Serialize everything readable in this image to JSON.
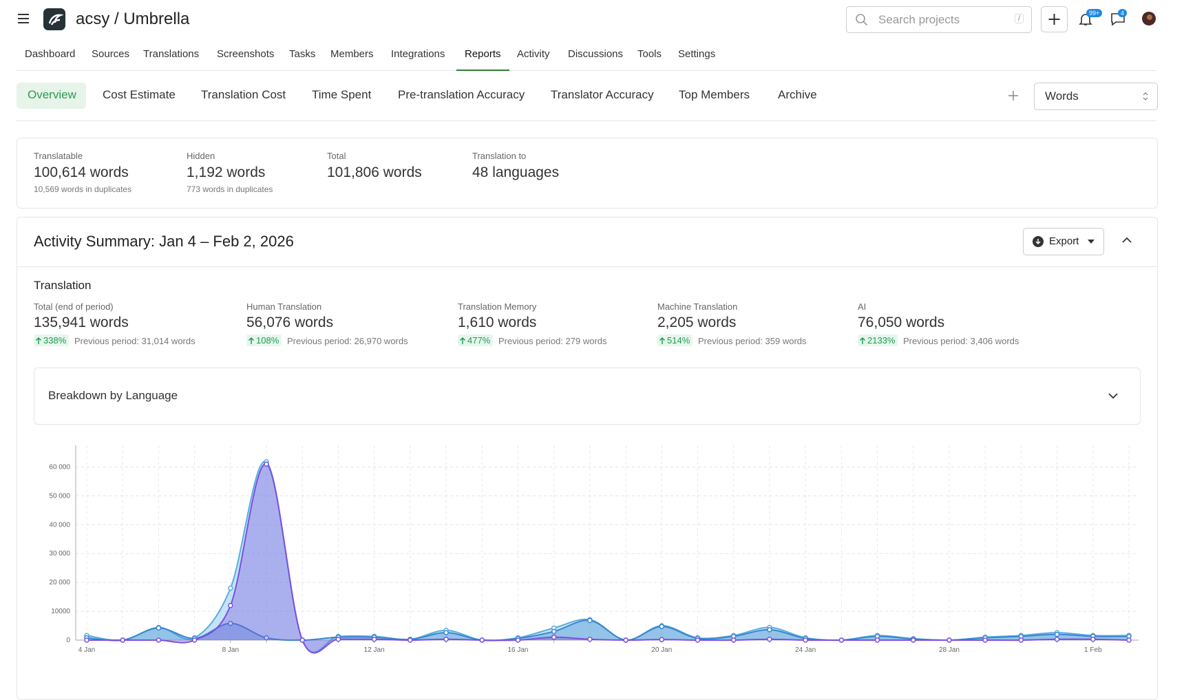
{
  "header": {
    "project": "acsy / Umbrella",
    "search_placeholder": "Search projects",
    "search_shortcut": "/",
    "notifications_badge": "99+",
    "messages_badge": "4"
  },
  "nav": {
    "items": [
      "Dashboard",
      "Sources",
      "Translations",
      "Screenshots",
      "Tasks",
      "Members",
      "Integrations",
      "Reports",
      "Activity",
      "Discussions",
      "Tools",
      "Settings"
    ],
    "active": 7
  },
  "tabs": {
    "items": [
      "Overview",
      "Cost Estimate",
      "Translation Cost",
      "Time Spent",
      "Pre-translation Accuracy",
      "Translator Accuracy",
      "Top Members",
      "Archive"
    ],
    "active": 0,
    "unit_select": "Words"
  },
  "stats": [
    {
      "label": "Translatable",
      "value": "100,614 words",
      "note": "10,569 words in duplicates"
    },
    {
      "label": "Hidden",
      "value": "1,192 words",
      "note": "773 words in duplicates"
    },
    {
      "label": "Total",
      "value": "101,806 words"
    },
    {
      "label": "Translation to",
      "value": "48 languages"
    }
  ],
  "summary": {
    "title": "Activity Summary: Jan 4 – Feb 2, 2026",
    "export": "Export",
    "section": "Translation",
    "metrics": [
      {
        "label": "Total (end of period)",
        "value": "135,941 words",
        "change": "338%",
        "previous": "Previous period: 31,014 words"
      },
      {
        "label": "Human Translation",
        "value": "56,076 words",
        "change": "108%",
        "previous": "Previous period: 26,970 words"
      },
      {
        "label": "Translation Memory",
        "value": "1,610 words",
        "change": "477%",
        "previous": "Previous period: 279 words"
      },
      {
        "label": "Machine Translation",
        "value": "2,205 words",
        "change": "514%",
        "previous": "Previous period: 359 words"
      },
      {
        "label": "AI",
        "value": "76,050 words",
        "change": "2133%",
        "previous": "Previous period: 3,406 words"
      }
    ],
    "breakdown": "Breakdown by Language"
  },
  "chart_data": {
    "type": "area",
    "categories": [
      "4 Jan",
      null,
      null,
      null,
      "8 Jan",
      null,
      null,
      null,
      "12 Jan",
      null,
      null,
      null,
      "16 Jan",
      null,
      null,
      null,
      "20 Jan",
      null,
      null,
      null,
      "24 Jan",
      null,
      null,
      null,
      "28 Jan",
      null,
      null,
      null,
      "1 Feb",
      null
    ],
    "series": [
      {
        "color": "#56aee0",
        "values": [
          1600,
          0,
          4400,
          800,
          18000,
          61800,
          0,
          1300,
          1300,
          300,
          3400,
          0,
          800,
          4200,
          7100,
          0,
          5000,
          800,
          1600,
          4400,
          800,
          0,
          1600,
          500,
          0,
          1000,
          1600,
          2600,
          1600,
          1600
        ]
      },
      {
        "color": "#3b86d0",
        "values": [
          800,
          0,
          4200,
          600,
          5800,
          800,
          0,
          1000,
          1000,
          200,
          2600,
          0,
          600,
          3000,
          6800,
          0,
          4700,
          600,
          1300,
          3600,
          600,
          0,
          1300,
          400,
          0,
          800,
          1300,
          2000,
          1300,
          1300
        ]
      },
      {
        "color": "#7c4fe0",
        "values": [
          0,
          0,
          0,
          0,
          12000,
          61000,
          0,
          300,
          300,
          0,
          300,
          0,
          0,
          1000,
          300,
          0,
          200,
          0,
          0,
          300,
          0,
          0,
          0,
          0,
          0,
          0,
          0,
          300,
          300,
          0
        ]
      }
    ],
    "ylim": [
      0,
      67500
    ],
    "yticks": [
      0,
      10000,
      {
        "value": 20000,
        "label": "20 000"
      },
      {
        "value": 30000,
        "label": "30 000"
      },
      {
        "value": 40000,
        "label": "40 000"
      },
      {
        "value": 50000,
        "label": "50 000"
      },
      {
        "value": 60000,
        "label": "60 000"
      }
    ],
    "grid": true
  }
}
